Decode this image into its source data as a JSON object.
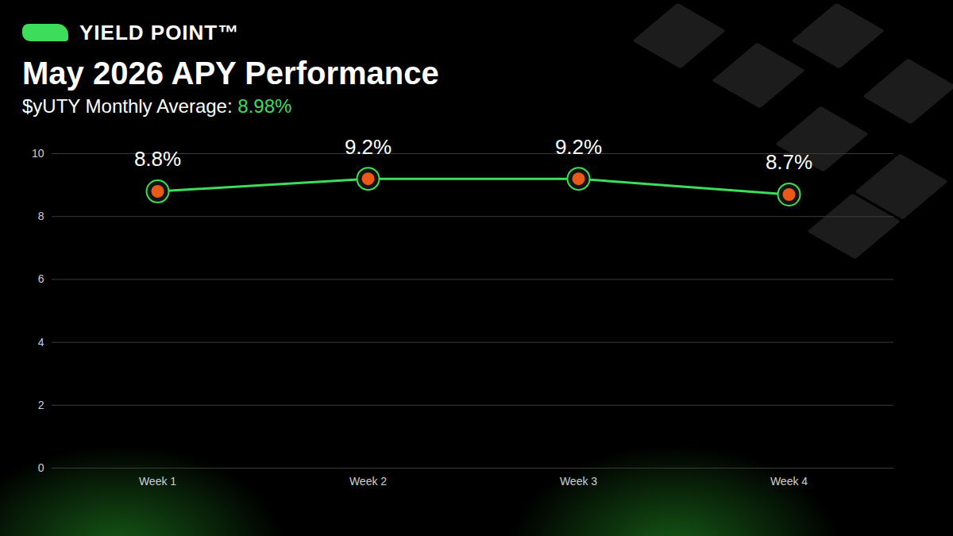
{
  "brand": "YIELD POINT™",
  "chart_data": {
    "type": "line",
    "title": "May 2026 APY Performance",
    "subtitle": "$yUTY Monthly Average: 8.98%",
    "categories": [
      "Week 1",
      "Week 2",
      "Week 3",
      "Week 4"
    ],
    "values": [
      8.8,
      9.2,
      9.2,
      8.7
    ],
    "value_labels": [
      "8.8%",
      "9.2%",
      "9.2%",
      "8.7%"
    ],
    "color": "#3ddc5a",
    "marker": "circle",
    "ylim": [
      0,
      10
    ],
    "yticks": [
      0,
      2,
      4,
      6,
      8,
      10
    ],
    "grid": true,
    "data_labels": true
  }
}
